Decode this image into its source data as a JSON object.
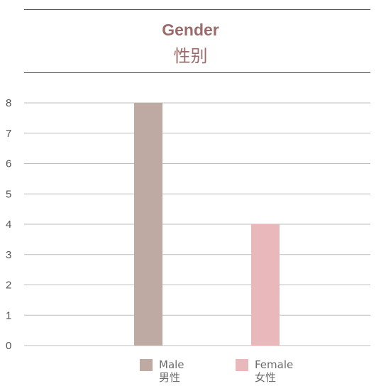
{
  "header": {
    "title_en": "Gender",
    "title_cn": "性别"
  },
  "colors": {
    "title": "#9b6b6b",
    "male": "#bfaaa3",
    "female": "#e8b8ba",
    "grid": "#bdbdbd",
    "axis_text": "#555555"
  },
  "legend": [
    {
      "label_en": "Male",
      "label_cn": "男性"
    },
    {
      "label_en": "Female",
      "label_cn": "女性"
    }
  ],
  "chart_data": {
    "type": "bar",
    "categories": [
      "Male",
      "Female"
    ],
    "values": [
      8,
      4
    ],
    "yticks": [
      "0",
      "1",
      "2",
      "3",
      "4",
      "5",
      "6",
      "7",
      "8"
    ],
    "ylim": [
      0,
      8
    ],
    "grid": true,
    "legend_position": "bottom"
  }
}
